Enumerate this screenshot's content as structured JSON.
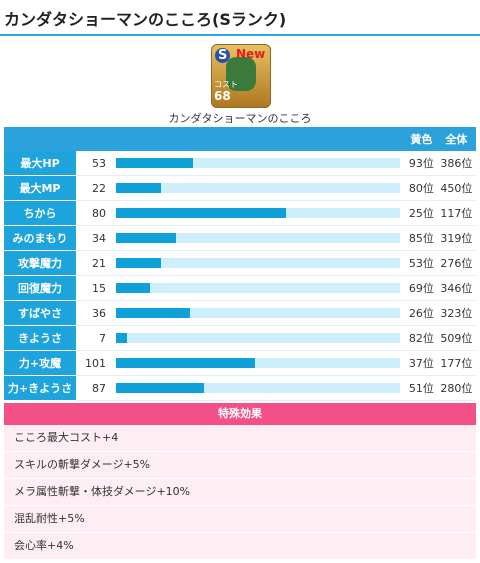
{
  "header": {
    "title": "カンダタショーマンのこころ(Sランク)"
  },
  "icon": {
    "rank": "S",
    "badge": "New",
    "cost_label": "コスト",
    "cost": 68
  },
  "name": "カンダタショーマンのこころ",
  "table": {
    "columns": [
      "黄色",
      "全体"
    ],
    "rows": [
      {
        "label": "最大HP",
        "value": 53,
        "bar": 27,
        "rank_yellow": "93位",
        "rank_all": "386位"
      },
      {
        "label": "最大MP",
        "value": 22,
        "bar": 16,
        "rank_yellow": "80位",
        "rank_all": "450位"
      },
      {
        "label": "ちから",
        "value": 80,
        "bar": 60,
        "rank_yellow": "25位",
        "rank_all": "117位"
      },
      {
        "label": "みのまもり",
        "value": 34,
        "bar": 21,
        "rank_yellow": "85位",
        "rank_all": "319位"
      },
      {
        "label": "攻撃魔力",
        "value": 21,
        "bar": 16,
        "rank_yellow": "53位",
        "rank_all": "276位"
      },
      {
        "label": "回復魔力",
        "value": 15,
        "bar": 12,
        "rank_yellow": "69位",
        "rank_all": "346位"
      },
      {
        "label": "すばやさ",
        "value": 36,
        "bar": 26,
        "rank_yellow": "26位",
        "rank_all": "323位"
      },
      {
        "label": "きようさ",
        "value": 7,
        "bar": 4,
        "rank_yellow": "82位",
        "rank_all": "509位"
      },
      {
        "label": "力+攻魔",
        "value": 101,
        "bar": 49,
        "rank_yellow": "37位",
        "rank_all": "177位"
      },
      {
        "label": "力+きようさ",
        "value": 87,
        "bar": 31,
        "rank_yellow": "51位",
        "rank_all": "280位"
      }
    ]
  },
  "effects": {
    "title": "特殊効果",
    "items": [
      "こころ最大コスト+4",
      "スキルの斬撃ダメージ+5%",
      "メラ属性斬撃・体技ダメージ+10%",
      "混乱耐性+5%",
      "会心率+4%"
    ]
  }
}
